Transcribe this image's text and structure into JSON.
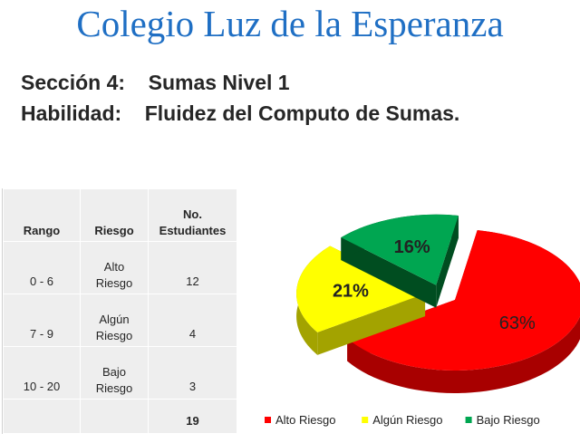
{
  "header": {
    "title": "Colegio Luz de la Esperanza",
    "section_line": "Sección 4:    Sumas Nivel 1",
    "skill_line": "Habilidad:    Fluidez del Computo de Sumas."
  },
  "table": {
    "headers": {
      "rango": "Rango",
      "riesgo": "Riesgo",
      "no_line1": "No.",
      "no_line2": "Estudiantes"
    },
    "rows": [
      {
        "rango": "0  -  6",
        "riesgo_1": "Alto",
        "riesgo_2": "Riesgo",
        "count": "12"
      },
      {
        "rango": "7  -  9",
        "riesgo_1": "Algún",
        "riesgo_2": "Riesgo",
        "count": "4"
      },
      {
        "rango": "10  -  20",
        "riesgo_1": "Bajo",
        "riesgo_2": "Riesgo",
        "count": "3"
      }
    ],
    "total": "19"
  },
  "chart_data": {
    "type": "pie",
    "three_d": true,
    "exploded": true,
    "categories": [
      "Alto Riesgo",
      "Algún Riesgo",
      "Bajo Riesgo"
    ],
    "values": [
      63,
      21,
      16
    ],
    "data_labels": [
      "63%",
      "21%",
      "16%"
    ],
    "colors": [
      "#ff0000",
      "#ffff00",
      "#00a651"
    ],
    "side_colors": [
      "#a80000",
      "#a3a300",
      "#004d20"
    ],
    "legend_position": "bottom"
  }
}
